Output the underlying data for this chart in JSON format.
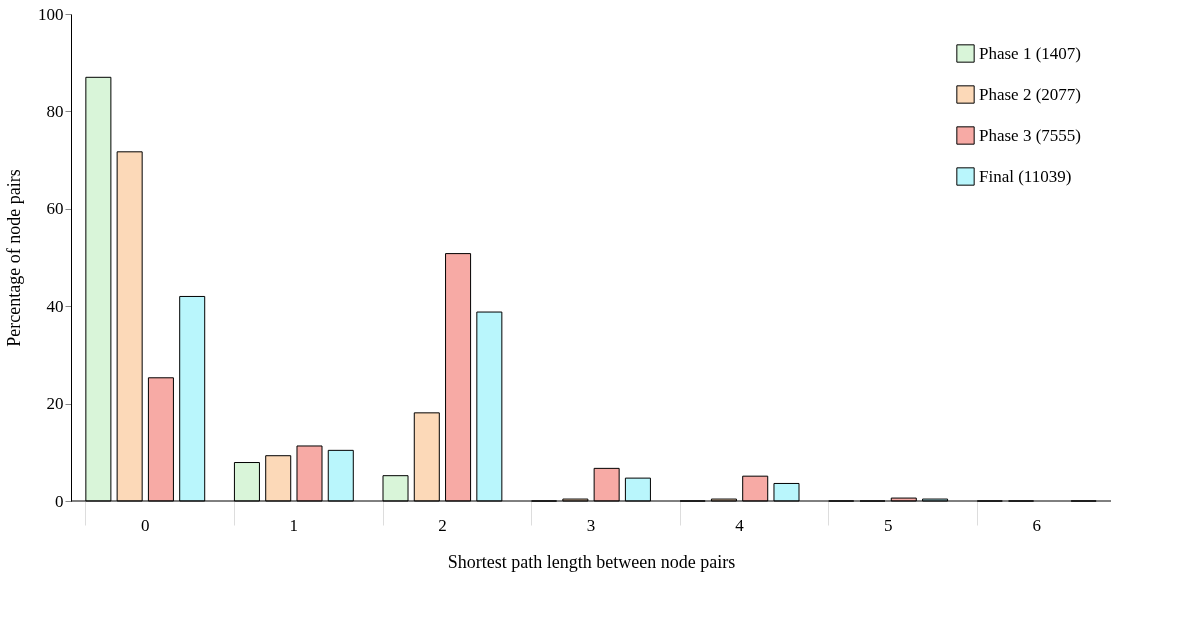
{
  "chart_data": {
    "type": "bar",
    "xlabel": "Shortest path length between node pairs",
    "ylabel": "Percentage of node pairs",
    "categories": [
      "0",
      "1",
      "2",
      "3",
      "4",
      "5",
      "6"
    ],
    "series": [
      {
        "name": "Phase 1 (1407)",
        "color": "#d9f5d9",
        "values": [
          87,
          7.9,
          5.2,
          0,
          0,
          0,
          0
        ]
      },
      {
        "name": "Phase 2 (2077)",
        "color": "#fcd9b8",
        "values": [
          71.7,
          9.3,
          18.1,
          0.4,
          0.4,
          0,
          0
        ]
      },
      {
        "name": "Phase 3 (7555)",
        "color": "#f7aaa5",
        "values": [
          25.3,
          11.3,
          50.8,
          6.7,
          5.1,
          0.6,
          null
        ]
      },
      {
        "name": "Final (11039)",
        "color": "#b9f6fc",
        "values": [
          42,
          10.4,
          38.8,
          4.7,
          3.6,
          0.4,
          0
        ]
      }
    ],
    "ylim": [
      0,
      100
    ],
    "yticks": [
      0,
      20,
      40,
      60,
      80,
      100
    ],
    "grid": false,
    "legend": "top right"
  }
}
